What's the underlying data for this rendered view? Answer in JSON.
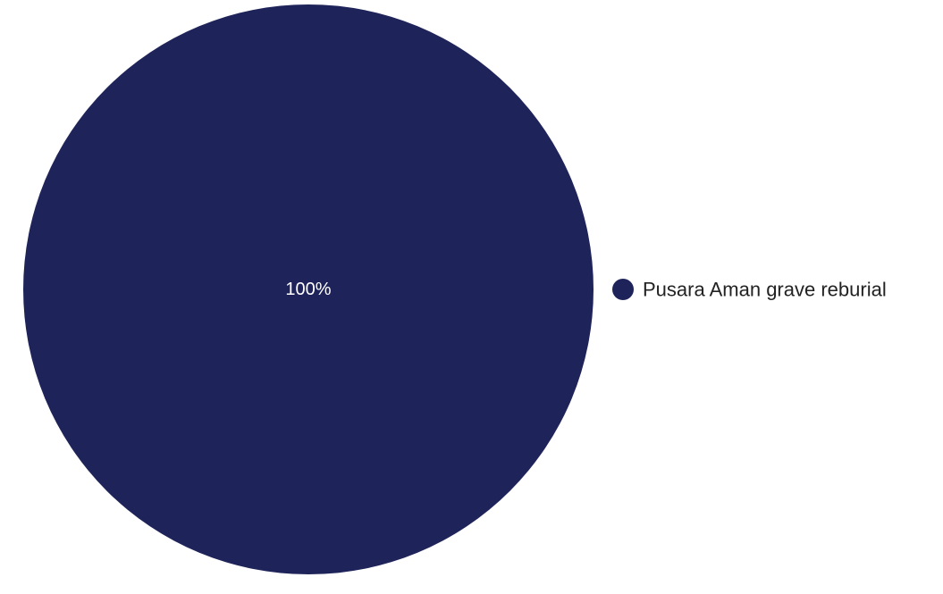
{
  "chart_data": {
    "type": "pie",
    "title": "",
    "categories": [
      "Pusara Aman grave reburial"
    ],
    "values": [
      100
    ],
    "data_labels": [
      "100%"
    ],
    "colors": [
      "#1e2459"
    ],
    "legend": {
      "position": "right",
      "entries": [
        "Pusara Aman grave reburial"
      ]
    }
  }
}
